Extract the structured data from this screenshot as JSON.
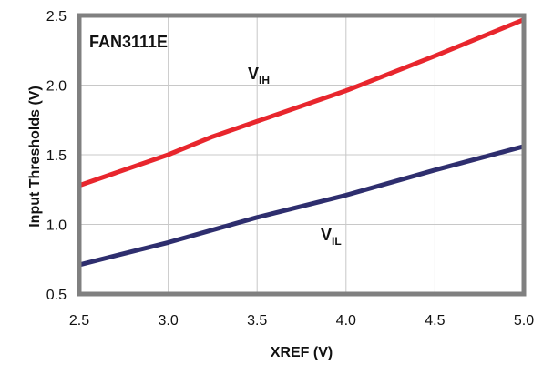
{
  "chart_data": {
    "type": "line",
    "title": "FAN3111E",
    "xlabel": "XREF (V)",
    "ylabel": "Input Thresholds (V)",
    "xlim": [
      2.5,
      5.0
    ],
    "ylim": [
      0.5,
      2.5
    ],
    "xticks": [
      "2.5",
      "3.0",
      "3.5",
      "4.0",
      "4.5",
      "5.0"
    ],
    "yticks": [
      "0.5",
      "1.0",
      "1.5",
      "2.0",
      "2.5"
    ],
    "grid": true,
    "series": [
      {
        "name_main": "V",
        "name_sub": "IH",
        "color": "#e8262d",
        "x": [
          2.5,
          3.0,
          3.25,
          3.5,
          4.0,
          4.5,
          5.0
        ],
        "y": [
          1.28,
          1.5,
          1.63,
          1.74,
          1.96,
          2.21,
          2.47
        ]
      },
      {
        "name_main": "V",
        "name_sub": "IL",
        "color": "#2e2e6e",
        "x": [
          2.5,
          3.0,
          3.5,
          4.0,
          4.5,
          5.0
        ],
        "y": [
          0.71,
          0.87,
          1.05,
          1.21,
          1.39,
          1.56
        ]
      }
    ]
  }
}
